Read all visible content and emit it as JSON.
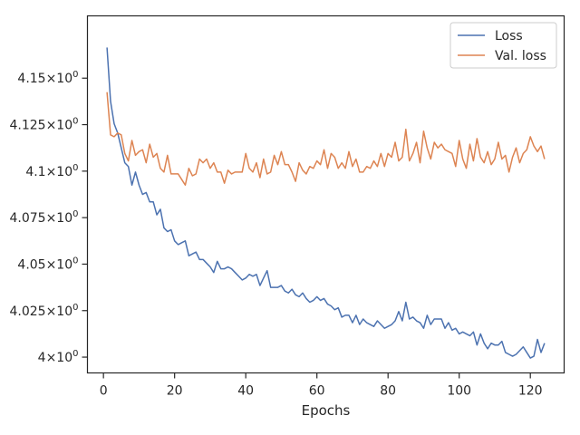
{
  "chart_data": {
    "type": "line",
    "title": "",
    "xlabel": "Epochs",
    "ylabel": "",
    "xlim": [
      -4.5,
      129.5
    ],
    "ylim": [
      3.9915,
      4.1835
    ],
    "grid": false,
    "legend_position": "top-right",
    "x_ticks": [
      {
        "value": 0,
        "label": "0"
      },
      {
        "value": 20,
        "label": "20"
      },
      {
        "value": 40,
        "label": "40"
      },
      {
        "value": 60,
        "label": "60"
      },
      {
        "value": 80,
        "label": "80"
      },
      {
        "value": 100,
        "label": "100"
      },
      {
        "value": 120,
        "label": "120"
      }
    ],
    "y_ticks": [
      {
        "value": 4.0,
        "base": "4",
        "exp": "0"
      },
      {
        "value": 4.025,
        "base": "4.025",
        "exp": "0"
      },
      {
        "value": 4.05,
        "base": "4.05",
        "exp": "0"
      },
      {
        "value": 4.075,
        "base": "4.075",
        "exp": "0"
      },
      {
        "value": 4.1,
        "base": "4.1",
        "exp": "0"
      },
      {
        "value": 4.125,
        "base": "4.125",
        "exp": "0"
      },
      {
        "value": 4.15,
        "base": "4.15",
        "exp": "0"
      }
    ],
    "x_start": 1,
    "series": [
      {
        "name": "Loss",
        "color": "#4c72b0",
        "values": [
          4.1665,
          4.1375,
          4.1255,
          4.1205,
          4.1125,
          4.1045,
          4.1025,
          4.0925,
          4.0995,
          4.0925,
          4.0875,
          4.0885,
          4.0835,
          4.0835,
          4.0765,
          4.0795,
          4.0695,
          4.0675,
          4.0685,
          4.0625,
          4.0605,
          4.0615,
          4.0625,
          4.0545,
          4.0555,
          4.0565,
          4.0525,
          4.0525,
          4.0505,
          4.0485,
          4.0455,
          4.0515,
          4.0475,
          4.0475,
          4.0485,
          4.0475,
          4.0455,
          4.0435,
          4.0415,
          4.0425,
          4.0445,
          4.0435,
          4.0445,
          4.0385,
          4.0425,
          4.0465,
          4.0375,
          4.0375,
          4.0375,
          4.0385,
          4.0355,
          4.0345,
          4.0365,
          4.0335,
          4.0325,
          4.0345,
          4.0315,
          4.0295,
          4.0305,
          4.0325,
          4.0305,
          4.0315,
          4.0285,
          4.0275,
          4.0255,
          4.0265,
          4.0215,
          4.0225,
          4.0225,
          4.0185,
          4.0225,
          4.0175,
          4.0205,
          4.0185,
          4.0175,
          4.0165,
          4.0195,
          4.0175,
          4.0155,
          4.0165,
          4.0175,
          4.0195,
          4.0245,
          4.0195,
          4.0295,
          4.0205,
          4.0215,
          4.0195,
          4.0185,
          4.0155,
          4.0225,
          4.0175,
          4.0205,
          4.0205,
          4.0205,
          4.0155,
          4.0185,
          4.0145,
          4.0155,
          4.0125,
          4.0135,
          4.0125,
          4.0115,
          4.0135,
          4.0065,
          4.0125,
          4.0075,
          4.0045,
          4.0075,
          4.0065,
          4.0065,
          4.0085,
          4.0025,
          4.0015,
          4.0005,
          4.0015,
          4.0035,
          4.0055,
          4.0025,
          3.9995,
          4.0005,
          4.0095,
          4.0025,
          4.0075
        ]
      },
      {
        "name": "Val. loss",
        "color": "#dd8452",
        "values": [
          4.1425,
          4.1195,
          4.1185,
          4.1205,
          4.1195,
          4.1095,
          4.1055,
          4.1165,
          4.1085,
          4.1105,
          4.1115,
          4.1045,
          4.1145,
          4.1075,
          4.1095,
          4.1015,
          4.0995,
          4.1085,
          4.0985,
          4.0985,
          4.0985,
          4.0955,
          4.0925,
          4.1015,
          4.0975,
          4.0985,
          4.1065,
          4.1045,
          4.1065,
          4.1015,
          4.1045,
          4.0995,
          4.0995,
          4.0935,
          4.1005,
          4.0985,
          4.0995,
          4.0995,
          4.0995,
          4.1095,
          4.1015,
          4.0995,
          4.1045,
          4.0965,
          4.1065,
          4.0985,
          4.0995,
          4.1085,
          4.1035,
          4.1105,
          4.1035,
          4.1035,
          4.0995,
          4.0945,
          4.1045,
          4.1005,
          4.0985,
          4.1025,
          4.1015,
          4.1055,
          4.1035,
          4.1115,
          4.1015,
          4.1095,
          4.1075,
          4.1015,
          4.1045,
          4.1015,
          4.1105,
          4.1025,
          4.1065,
          4.0995,
          4.0995,
          4.1025,
          4.1015,
          4.1055,
          4.1025,
          4.1095,
          4.1025,
          4.1095,
          4.1075,
          4.1155,
          4.1055,
          4.1075,
          4.1225,
          4.1055,
          4.1095,
          4.1155,
          4.1045,
          4.1215,
          4.1125,
          4.1065,
          4.1155,
          4.1125,
          4.1145,
          4.1115,
          4.1105,
          4.1095,
          4.1025,
          4.1165,
          4.1065,
          4.1015,
          4.1145,
          4.1055,
          4.1175,
          4.1075,
          4.1045,
          4.1105,
          4.1035,
          4.1065,
          4.1155,
          4.1065,
          4.1085,
          4.0995,
          4.1075,
          4.1125,
          4.1045,
          4.1095,
          4.1115,
          4.1185,
          4.1135,
          4.1105,
          4.1135,
          4.1065
        ]
      }
    ]
  }
}
